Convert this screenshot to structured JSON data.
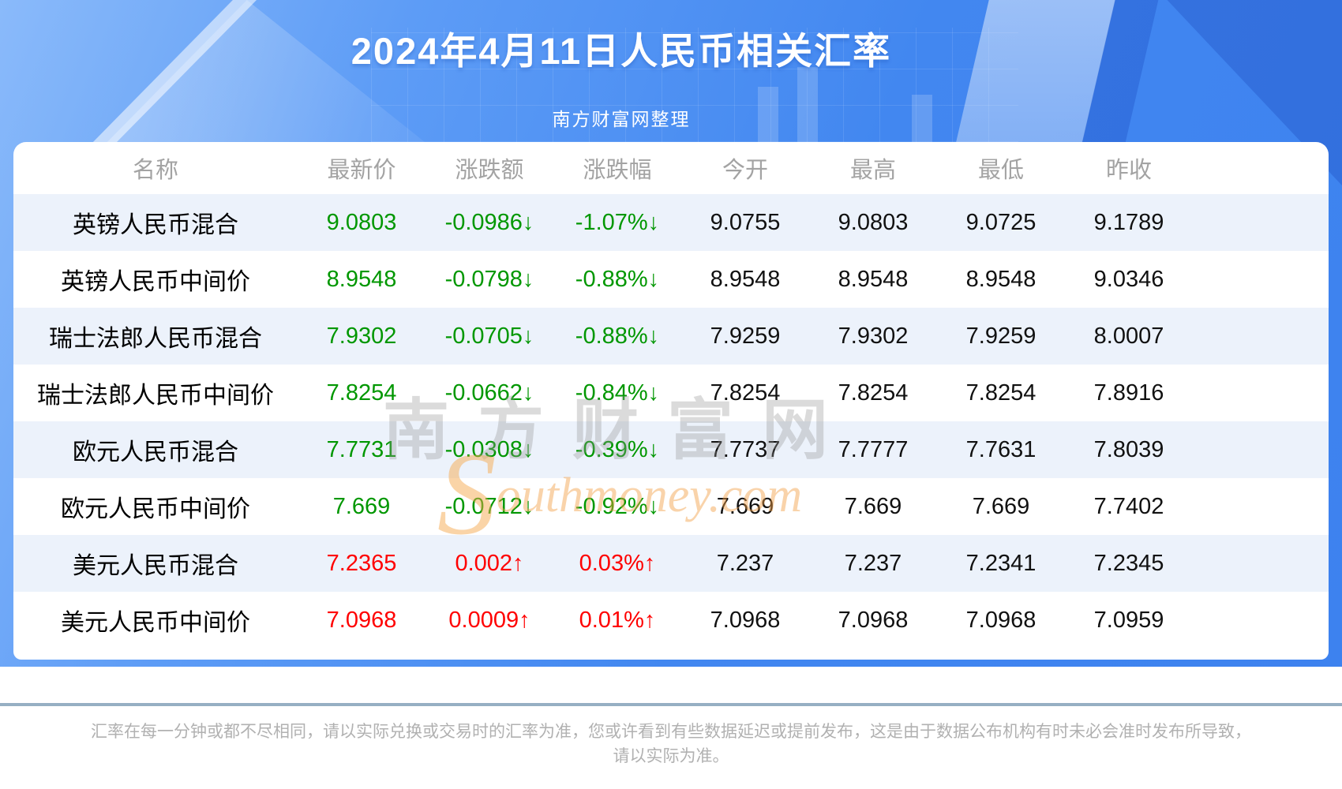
{
  "page": {
    "title": "2024年4月11日人民币相关汇率",
    "subtitle": "南方财富网整理"
  },
  "watermark": {
    "cn": "南方财富网",
    "en_initial": "S",
    "en_rest": "outhmoney.com"
  },
  "table": {
    "columns": [
      "名称",
      "最新价",
      "涨跌额",
      "涨跌幅",
      "今开",
      "最高",
      "最低",
      "昨收"
    ],
    "rows": [
      {
        "name": "英镑人民币混合",
        "trend": "down",
        "values": [
          "9.0803",
          "-0.0986↓",
          "-1.07%↓",
          "9.0755",
          "9.0803",
          "9.0725",
          "9.1789"
        ]
      },
      {
        "name": "英镑人民币中间价",
        "trend": "down",
        "values": [
          "8.9548",
          "-0.0798↓",
          "-0.88%↓",
          "8.9548",
          "8.9548",
          "8.9548",
          "9.0346"
        ]
      },
      {
        "name": "瑞士法郎人民币混合",
        "trend": "down",
        "values": [
          "7.9302",
          "-0.0705↓",
          "-0.88%↓",
          "7.9259",
          "7.9302",
          "7.9259",
          "8.0007"
        ]
      },
      {
        "name": "瑞士法郎人民币中间价",
        "trend": "down",
        "values": [
          "7.8254",
          "-0.0662↓",
          "-0.84%↓",
          "7.8254",
          "7.8254",
          "7.8254",
          "7.8916"
        ]
      },
      {
        "name": "欧元人民币混合",
        "trend": "down",
        "values": [
          "7.7731",
          "-0.0308↓",
          "-0.39%↓",
          "7.7737",
          "7.7777",
          "7.7631",
          "7.8039"
        ]
      },
      {
        "name": "欧元人民币中间价",
        "trend": "down",
        "values": [
          "7.669",
          "-0.0712↓",
          "-0.92%↓",
          "7.669",
          "7.669",
          "7.669",
          "7.7402"
        ]
      },
      {
        "name": "美元人民币混合",
        "trend": "up",
        "values": [
          "7.2365",
          "0.002↑",
          "0.03%↑",
          "7.237",
          "7.237",
          "7.2341",
          "7.2345"
        ]
      },
      {
        "name": "美元人民币中间价",
        "trend": "up",
        "values": [
          "7.0968",
          "0.0009↑",
          "0.01%↑",
          "7.0968",
          "7.0968",
          "7.0968",
          "7.0959"
        ]
      }
    ]
  },
  "footer": {
    "line1": "汇率在每一分钟或都不尽相同，请以实际兑换或交易时的汇率为准，您或许看到有些数据延迟或提前发布，这是由于数据公布机构有时未必会准时发布所导致，",
    "line2": "请以实际为准。"
  },
  "colors": {
    "accent_blue": "#4287f0",
    "up_red": "#ff0000",
    "down_green": "#009700",
    "row_stripe": "#ecf2fb",
    "header_gray": "#a3a3a3",
    "divider": "#96afc3"
  },
  "chart_data": {
    "type": "table",
    "title": "2024年4月11日人民币相关汇率",
    "subtitle": "南方财富网整理",
    "columns": [
      "名称",
      "最新价",
      "涨跌额",
      "涨跌幅",
      "今开",
      "最高",
      "最低",
      "昨收"
    ],
    "rows": [
      [
        "英镑人民币混合",
        9.0803,
        -0.0986,
        "-1.07%",
        9.0755,
        9.0803,
        9.0725,
        9.1789
      ],
      [
        "英镑人民币中间价",
        8.9548,
        -0.0798,
        "-0.88%",
        8.9548,
        8.9548,
        8.9548,
        9.0346
      ],
      [
        "瑞士法郎人民币混合",
        7.9302,
        -0.0705,
        "-0.88%",
        7.9259,
        7.9302,
        7.9259,
        8.0007
      ],
      [
        "瑞士法郎人民币中间价",
        7.8254,
        -0.0662,
        "-0.84%",
        7.8254,
        7.8254,
        7.8254,
        7.8916
      ],
      [
        "欧元人民币混合",
        7.7731,
        -0.0308,
        "-0.39%",
        7.7737,
        7.7777,
        7.7631,
        7.8039
      ],
      [
        "欧元人民币中间价",
        7.669,
        -0.0712,
        "-0.92%",
        7.669,
        7.669,
        7.669,
        7.7402
      ],
      [
        "美元人民币混合",
        7.2365,
        0.002,
        "0.03%",
        7.237,
        7.237,
        7.2341,
        7.2345
      ],
      [
        "美元人民币中间价",
        7.0968,
        0.0009,
        "0.01%",
        7.0968,
        7.0968,
        7.0968,
        7.0959
      ]
    ]
  }
}
